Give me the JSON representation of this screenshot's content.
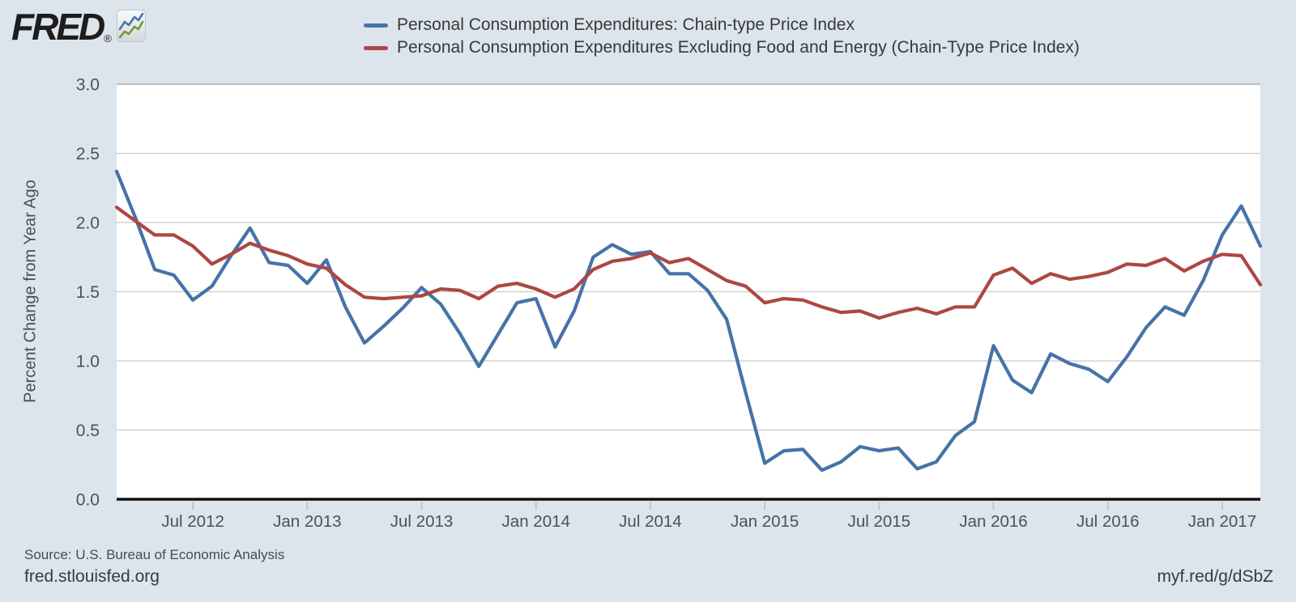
{
  "logo": {
    "text": "FRED",
    "registered": "®"
  },
  "legend": {
    "items": [
      {
        "label": "Personal Consumption Expenditures: Chain-type Price Index",
        "color": "#4673a7"
      },
      {
        "label": "Personal Consumption Expenditures Excluding Food and Energy (Chain-Type Price Index)",
        "color": "#ac4743"
      }
    ]
  },
  "chart_data": {
    "type": "line",
    "title": "",
    "xlabel": "",
    "ylabel": "Percent Change from Year Ago",
    "x_unit": "month",
    "x_range": [
      "2012-03",
      "2017-03"
    ],
    "ylim": [
      0.0,
      3.0
    ],
    "grid": true,
    "legend_position": "top",
    "y_ticks": [
      "3.0",
      "2.5",
      "2.0",
      "1.5",
      "1.0",
      "0.5",
      "0.0"
    ],
    "x_ticks": [
      {
        "label": "Jul 2012",
        "i": 4
      },
      {
        "label": "Jan 2013",
        "i": 10
      },
      {
        "label": "Jul 2013",
        "i": 16
      },
      {
        "label": "Jan 2014",
        "i": 22
      },
      {
        "label": "Jul 2014",
        "i": 28
      },
      {
        "label": "Jan 2015",
        "i": 34
      },
      {
        "label": "Jul 2015",
        "i": 40
      },
      {
        "label": "Jan 2016",
        "i": 46
      },
      {
        "label": "Jul 2016",
        "i": 52
      },
      {
        "label": "Jan 2017",
        "i": 58
      }
    ],
    "series": [
      {
        "name": "Personal Consumption Expenditures: Chain-type Price Index",
        "color": "#4673a7",
        "values": [
          2.37,
          2.03,
          1.66,
          1.62,
          1.44,
          1.54,
          1.76,
          1.96,
          1.71,
          1.69,
          1.56,
          1.73,
          1.39,
          1.13,
          1.25,
          1.38,
          1.53,
          1.41,
          1.2,
          0.96,
          1.19,
          1.42,
          1.45,
          1.1,
          1.36,
          1.75,
          1.84,
          1.77,
          1.79,
          1.63,
          1.63,
          1.51,
          1.3,
          0.77,
          0.26,
          0.35,
          0.36,
          0.21,
          0.27,
          0.38,
          0.35,
          0.37,
          0.22,
          0.27,
          0.46,
          0.56,
          1.11,
          0.86,
          0.77,
          1.05,
          0.98,
          0.94,
          0.85,
          1.03,
          1.24,
          1.39,
          1.33,
          1.58,
          1.91,
          2.12,
          1.83
        ]
      },
      {
        "name": "Personal Consumption Expenditures Excluding Food and Energy (Chain-Type Price Index)",
        "color": "#ac4743",
        "values": [
          2.11,
          2.01,
          1.91,
          1.91,
          1.83,
          1.7,
          1.77,
          1.85,
          1.8,
          1.76,
          1.7,
          1.67,
          1.55,
          1.46,
          1.45,
          1.46,
          1.47,
          1.52,
          1.51,
          1.45,
          1.54,
          1.56,
          1.52,
          1.46,
          1.52,
          1.66,
          1.72,
          1.74,
          1.78,
          1.71,
          1.74,
          1.66,
          1.58,
          1.54,
          1.42,
          1.45,
          1.44,
          1.39,
          1.35,
          1.36,
          1.31,
          1.35,
          1.38,
          1.34,
          1.39,
          1.39,
          1.62,
          1.67,
          1.56,
          1.63,
          1.59,
          1.61,
          1.64,
          1.7,
          1.69,
          1.74,
          1.65,
          1.72,
          1.77,
          1.76,
          1.55
        ]
      }
    ]
  },
  "footer": {
    "source": "Source: U.S. Bureau of Economic Analysis",
    "site": "fred.stlouisfed.org",
    "short_url": "myf.red/g/dSbZ"
  },
  "colors": {
    "background": "#dce4ec",
    "plot_background": "#ffffff",
    "gridline": "#cbcbcb",
    "axis_line": "#111111",
    "tick_mark": "#b8c6d4",
    "axis_text": "#4a525a"
  }
}
